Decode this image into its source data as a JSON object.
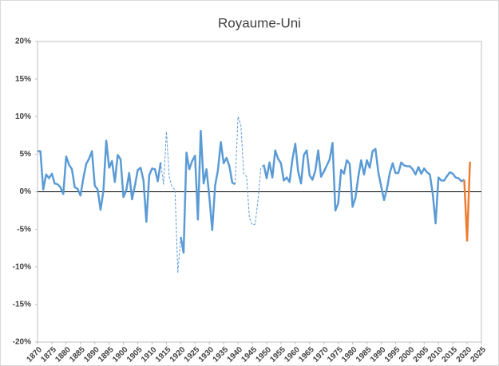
{
  "chart_data": {
    "type": "line",
    "title": "Royaume-Uni",
    "xlim": [
      1870,
      2025
    ],
    "xticks": [
      1870,
      1875,
      1880,
      1885,
      1890,
      1895,
      1900,
      1905,
      1910,
      1915,
      1920,
      1925,
      1930,
      1935,
      1940,
      1945,
      1950,
      1955,
      1960,
      1965,
      1970,
      1975,
      1980,
      1985,
      1990,
      1995,
      2000,
      2005,
      2010,
      2015,
      2020,
      2025
    ],
    "ylim": [
      -20,
      20
    ],
    "yticks": [
      {
        "value": -20,
        "label": "-20%"
      },
      {
        "value": -15,
        "label": "-15%"
      },
      {
        "value": -10,
        "label": "-10%"
      },
      {
        "value": -5,
        "label": "-5%"
      },
      {
        "value": 0,
        "label": "0%"
      },
      {
        "value": 5,
        "label": "5%"
      },
      {
        "value": 10,
        "label": "10%"
      },
      {
        "value": 15,
        "label": "15%"
      },
      {
        "value": 20,
        "label": "20%"
      }
    ],
    "series": [
      {
        "color": "#5b9bd5",
        "dashed": false,
        "x": [
          1870,
          1871,
          1872,
          1873,
          1874,
          1875,
          1876,
          1877,
          1878,
          1879,
          1880,
          1881,
          1882,
          1883,
          1884,
          1885,
          1886,
          1887,
          1888,
          1889,
          1890,
          1891,
          1892,
          1893,
          1894,
          1895,
          1896,
          1897,
          1898,
          1899,
          1900,
          1901,
          1902,
          1903,
          1904,
          1905,
          1906,
          1907,
          1908,
          1909,
          1910,
          1911,
          1912,
          1913
        ],
        "values": [
          5.4,
          5.4,
          0.3,
          2.3,
          1.8,
          2.4,
          1.1,
          1.0,
          0.6,
          -0.3,
          4.7,
          3.6,
          3.0,
          0.6,
          0.4,
          -0.5,
          1.8,
          3.7,
          4.4,
          5.4,
          0.8,
          0.3,
          -2.4,
          0.1,
          6.8,
          3.2,
          4.1,
          1.3,
          4.9,
          4.3,
          -0.7,
          0.2,
          2.5,
          -1.0,
          0.8,
          2.9,
          3.2,
          1.5,
          -4.0,
          2.2,
          3.1,
          3.0,
          1.4,
          3.9
        ]
      },
      {
        "color": "#5b9bd5",
        "dashed": true,
        "x": [
          1913,
          1914,
          1915,
          1916,
          1917,
          1918,
          1919,
          1920
        ],
        "values": [
          3.9,
          1.0,
          8.0,
          2.0,
          0.6,
          0.3,
          -10.8,
          -6.0
        ]
      },
      {
        "color": "#5b9bd5",
        "dashed": false,
        "x": [
          1920,
          1921,
          1922,
          1923,
          1924,
          1925,
          1926,
          1927,
          1928,
          1929,
          1930,
          1931,
          1932,
          1933,
          1934,
          1935,
          1936,
          1937,
          1938,
          1939
        ],
        "values": [
          -6.0,
          -8.1,
          5.2,
          3.0,
          4.1,
          4.8,
          -3.7,
          8.1,
          1.1,
          3.0,
          -0.7,
          -5.1,
          0.8,
          2.9,
          6.6,
          3.8,
          4.5,
          3.4,
          1.2,
          1.0
        ]
      },
      {
        "color": "#5b9bd5",
        "dashed": true,
        "x": [
          1939,
          1940,
          1941,
          1942,
          1943,
          1944,
          1945,
          1946,
          1947,
          1948,
          1949
        ],
        "values": [
          1.0,
          10.0,
          8.9,
          2.4,
          2.0,
          -3.5,
          -4.4,
          -4.3,
          -1.0,
          3.2,
          3.6
        ]
      },
      {
        "color": "#5b9bd5",
        "dashed": false,
        "x": [
          1949,
          1950,
          1951,
          1952,
          1953,
          1954,
          1955,
          1956,
          1957,
          1958,
          1959,
          1960,
          1961,
          1962,
          1963,
          1964,
          1965,
          1966,
          1967,
          1968,
          1969,
          1970,
          1971,
          1972,
          1973,
          1974,
          1975,
          1976,
          1977,
          1978,
          1979,
          1980,
          1981,
          1982,
          1983,
          1984,
          1985,
          1986,
          1987,
          1988,
          1989,
          1990,
          1991,
          1992,
          1993,
          1994,
          1995,
          1996,
          1997,
          1998,
          1999,
          2000,
          2001,
          2002,
          2003,
          2004,
          2005,
          2006,
          2007,
          2008,
          2009,
          2010,
          2011,
          2012,
          2013,
          2014,
          2015,
          2016,
          2017,
          2018,
          2019
        ],
        "values": [
          3.6,
          1.8,
          3.9,
          1.9,
          5.5,
          4.4,
          3.8,
          1.5,
          1.9,
          1.3,
          4.3,
          6.4,
          2.7,
          1.1,
          4.9,
          5.5,
          2.2,
          1.6,
          2.8,
          5.5,
          2.0,
          2.7,
          3.5,
          4.3,
          6.5,
          -2.5,
          -1.5,
          2.9,
          2.4,
          4.2,
          3.7,
          -2.0,
          -0.8,
          2.0,
          4.2,
          2.3,
          4.2,
          3.2,
          5.4,
          5.7,
          2.6,
          0.7,
          -1.1,
          0.4,
          2.5,
          3.8,
          2.5,
          2.5,
          3.9,
          3.5,
          3.4,
          3.4,
          3.0,
          2.3,
          3.3,
          2.4,
          3.1,
          2.6,
          2.3,
          -0.3,
          -4.2,
          1.9,
          1.5,
          1.5,
          2.1,
          2.6,
          2.4,
          1.9,
          1.8,
          1.4,
          1.6
        ]
      },
      {
        "color": "#ed7d31",
        "dashed": false,
        "x": [
          2019,
          2020,
          2021
        ],
        "values": [
          1.6,
          -6.5,
          4.0
        ]
      }
    ]
  }
}
